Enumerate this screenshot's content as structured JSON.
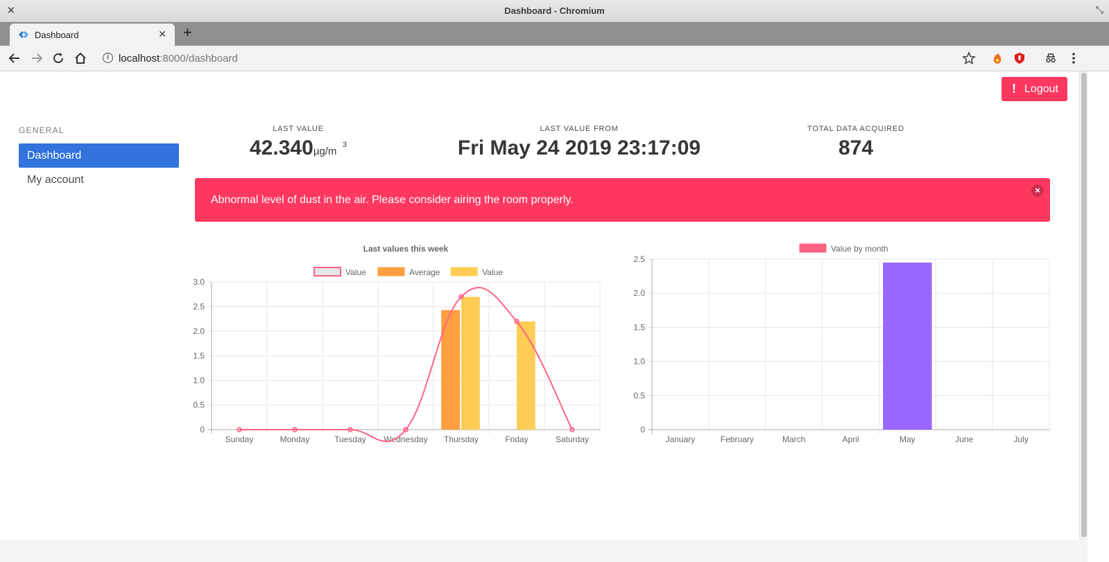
{
  "window": {
    "title": "Dashboard - Chromium"
  },
  "tab": {
    "title": "Dashboard"
  },
  "address": {
    "host": "localhost",
    "path": ":8000/dashboard"
  },
  "icons": {
    "back": "arrow-left-icon",
    "forward": "arrow-right-icon",
    "reload": "reload-icon",
    "home": "home-icon",
    "bookmark": "star-icon",
    "menu": "kebab-menu-icon"
  },
  "logout": {
    "label": "Logout"
  },
  "sidebar": {
    "label": "GENERAL",
    "items": [
      {
        "label": "Dashboard",
        "active": true
      },
      {
        "label": "My account",
        "active": false
      }
    ]
  },
  "stats": {
    "last_value": {
      "heading": "LAST VALUE",
      "value": "42.340",
      "unit": "µg/m",
      "exp": "3"
    },
    "last_from": {
      "heading": "LAST VALUE FROM",
      "value": "Fri May 24 2019 23:17:09"
    },
    "total": {
      "heading": "TOTAL DATA ACQUIRED",
      "value": "874"
    }
  },
  "notice": {
    "message": "Abnormal level of dust in the air. Please consider airing the room properly.",
    "close": "×"
  },
  "colors": {
    "danger": "#ff3860",
    "primary": "#3273dc",
    "average": "#ff9f40",
    "value_bar": "#ffcd56",
    "month_bar": "#9966ff"
  },
  "chart_data": [
    {
      "type": "bar",
      "title": "Last values this week",
      "categories": [
        "Sunday",
        "Monday",
        "Tuesday",
        "Wednesday",
        "Thursday",
        "Friday",
        "Saturday"
      ],
      "ylim": [
        0,
        3.0
      ],
      "yticks": [
        "0",
        "0.5",
        "1.0",
        "1.5",
        "2.0",
        "2.5",
        "3.0"
      ],
      "grid": true,
      "legend": "top",
      "series": [
        {
          "name": "Value",
          "kind": "line",
          "color": "#ff6384",
          "values": [
            0,
            0,
            0,
            0,
            2.7,
            2.2,
            0
          ]
        },
        {
          "name": "Average",
          "kind": "bar",
          "color": "#ff9f40",
          "values": [
            0,
            0,
            0,
            0,
            2.43,
            0,
            0
          ]
        },
        {
          "name": "Value",
          "kind": "bar",
          "color": "#ffcd56",
          "values": [
            0,
            0,
            0,
            0,
            2.7,
            2.2,
            0
          ]
        }
      ]
    },
    {
      "type": "bar",
      "categories": [
        "January",
        "February",
        "March",
        "April",
        "May",
        "June",
        "July"
      ],
      "ylim": [
        0,
        2.5
      ],
      "yticks": [
        "0",
        "0.5",
        "1.0",
        "1.5",
        "2.0",
        "2.5"
      ],
      "grid": true,
      "legend": "top",
      "series": [
        {
          "name": "Value by month",
          "color": "#9966ff",
          "legend_color": "#ff6384",
          "values": [
            0,
            0,
            0,
            0,
            2.45,
            0,
            0
          ]
        }
      ]
    }
  ]
}
